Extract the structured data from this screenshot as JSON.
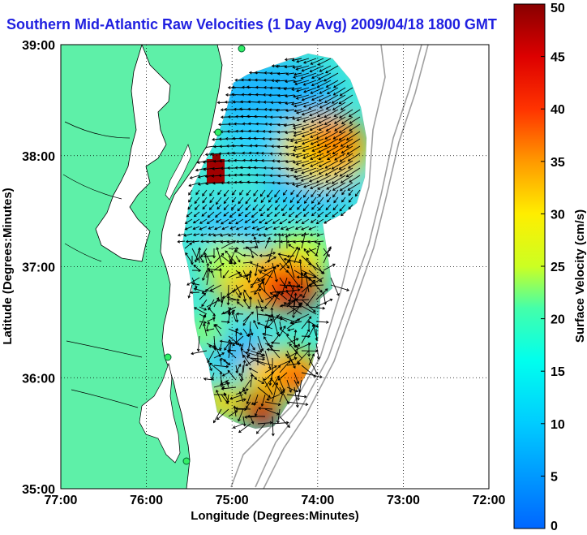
{
  "title": "Southern Mid-Atlantic Raw Velocities (1 Day Avg) 2009/04/18 1800 GMT",
  "axes": {
    "xlabel": "Longitude (Degrees:Minutes)",
    "ylabel": "Latitude (Degrees:Minutes)",
    "x_ticks": [
      "77:00",
      "76:00",
      "75:00",
      "74:00",
      "73:00",
      "72:00"
    ],
    "y_ticks": [
      "39:00",
      "38:00",
      "37:00",
      "36:00",
      "35:00"
    ],
    "x_range_deg_west": [
      77,
      72
    ],
    "y_range_deg_north": [
      35,
      39
    ],
    "grid": "dotted"
  },
  "colorbar": {
    "label": "Surface Velocity (cm/s)",
    "ticks": [
      "50",
      "45",
      "40",
      "35",
      "30",
      "25",
      "20",
      "15",
      "10",
      "5",
      "0"
    ],
    "range": [
      0,
      50
    ],
    "colormap": "jet"
  },
  "colors": {
    "land": "#5ef0a8",
    "ocean": "#ffffff",
    "title": "#1f1fe0",
    "bathymetry": "#999999"
  },
  "chart_data": {
    "type": "heatmap",
    "description_units": "cm/s",
    "hotspots": [
      {
        "lon": -75.45,
        "lat": 38.05,
        "speed": 45
      },
      {
        "lon": -74.55,
        "lat": 36.75,
        "speed": 45
      },
      {
        "lon": -74.1,
        "lat": 37.95,
        "speed": 35
      },
      {
        "lon": -74.3,
        "lat": 36.15,
        "speed": 40
      },
      {
        "lon": -74.85,
        "lat": 35.65,
        "speed": 45
      },
      {
        "lon": -74.9,
        "lat": 36.95,
        "speed": 30
      }
    ]
  }
}
